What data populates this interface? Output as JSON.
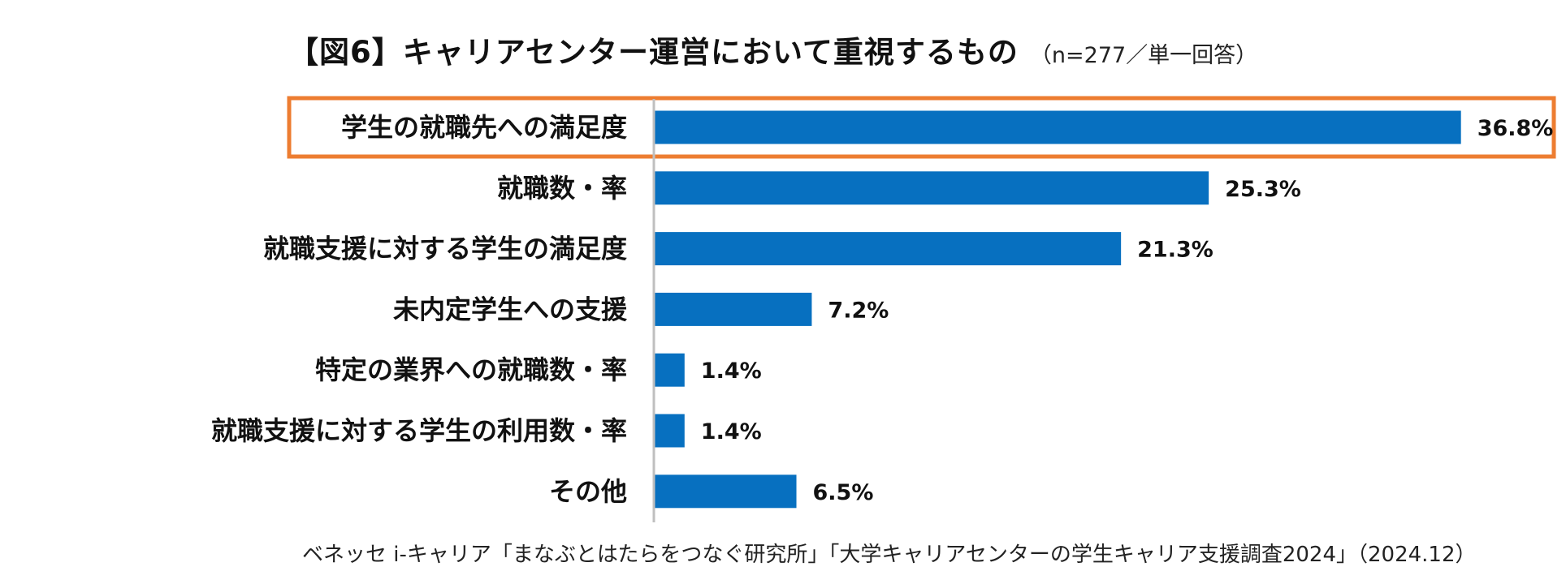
{
  "title": "【図6】キャリアセンター運営において重視するもの",
  "subtitle": "（n=277／単一回答）",
  "source": "ベネッセ i-キャリア「まなぶとはたらをつなぐ研究所」「大学キャリアセンターの学生キャリア支援調査2024」（2024.12）",
  "colors": {
    "bar": "#0770C0",
    "highlight": "#ED7D31",
    "axis": "#BFBFBF"
  },
  "chart_data": {
    "type": "bar",
    "orientation": "horizontal",
    "title": "【図6】キャリアセンター運営において重視するもの",
    "subtitle": "（n=277／単一回答）",
    "categories": [
      "学生の就職先への満足度",
      "就職数・率",
      "就職支援に対する学生の満足度",
      "未内定学生への支援",
      "特定の業界への就職数・率",
      "就職支援に対する学生の利用数・率",
      "その他"
    ],
    "values": [
      36.8,
      25.3,
      21.3,
      7.2,
      1.4,
      1.4,
      6.5
    ],
    "value_labels": [
      "36.8%",
      "25.3%",
      "21.3%",
      "7.2%",
      "1.4%",
      "1.4%",
      "6.5%"
    ],
    "unit": "%",
    "xlim": [
      0,
      38.7
    ],
    "grid": false,
    "legend": "none",
    "highlighted_index": 0
  }
}
